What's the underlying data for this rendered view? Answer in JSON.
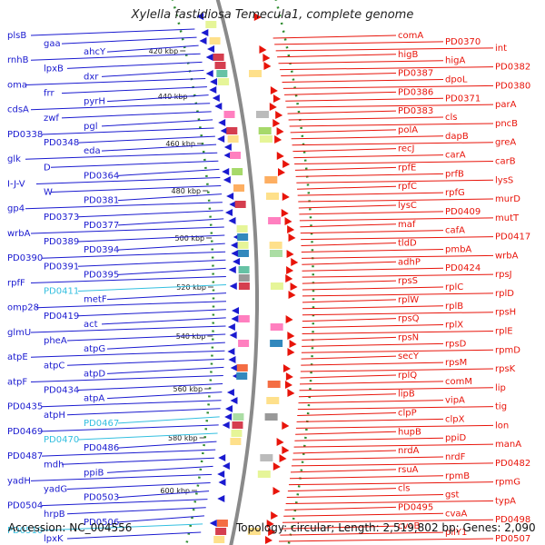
{
  "title": "Xylella fastidiosa Temecula1, complete genome",
  "footer": {
    "accession": "Accession: NC_004556",
    "topology": "Topology: circular; Length: 2,519,802 bp; Genes: 2,090"
  },
  "colors": {
    "forward": "#e8140a",
    "reverse": "#1a1ad0",
    "highlight": "#33bfe0",
    "ruler_dot": "#2e8b2e",
    "backbone": "#8a8a8a"
  },
  "scale_ticks": [
    "420 kbp",
    "440 kbp",
    "460 kbp",
    "480 kbp",
    "500 kbp",
    "520 kbp",
    "540 kbp",
    "560 kbp",
    "580 kbp",
    "600 kbp"
  ],
  "reverse_labels": [
    "plsB",
    "gaa",
    "ahcY",
    "rnhB",
    "lpxB",
    "dxr",
    "oma",
    "frr",
    "pyrH",
    "cdsA",
    "zwf",
    "pgl",
    "PD0338",
    "PD0348",
    "eda",
    "glk",
    "D",
    "PD0364",
    "I-J-V",
    "W",
    "PD0381",
    "gp4",
    "PD0373",
    "PD0377",
    "wrbA",
    "PD0389",
    "PD0394",
    "PD0390",
    "PD0391",
    "PD0395",
    "rpfF",
    "PD0411",
    "metF",
    "omp28",
    "PD0419",
    "act",
    "glmU",
    "pheA",
    "atpG",
    "atpE",
    "atpC",
    "atpD",
    "atpF",
    "PD0434",
    "atpA",
    "PD0435",
    "atpH",
    "PD0467",
    "PD0469",
    "PD0470",
    "PD0486",
    "PD0487",
    "mdh",
    "ppiB",
    "yadH",
    "yadG",
    "PD0503",
    "PD0504",
    "hrpB",
    "PD0506",
    "PD0510",
    "lpxK"
  ],
  "forward_labels": [
    "comA",
    "PD0370",
    "int",
    "higB",
    "higA",
    "PD0382",
    "PD0387",
    "dpoL",
    "PD0380",
    "PD0386",
    "PD0371",
    "parA",
    "PD0383",
    "cls",
    "pncB",
    "polA",
    "dapB",
    "greA",
    "recJ",
    "carA",
    "carB",
    "rpfE",
    "prfB",
    "lysS",
    "rpfC",
    "rpfG",
    "murD",
    "lysC",
    "PD0409",
    "mutT",
    "maf",
    "cafA",
    "PD0417",
    "tldD",
    "pmbA",
    "wrbA",
    "adhP",
    "PD0424",
    "rpsJ",
    "rpsS",
    "rplC",
    "rplD",
    "rplW",
    "rplB",
    "rpsH",
    "rpsQ",
    "rplX",
    "rplE",
    "rpsN",
    "rpsD",
    "rpmD",
    "secY",
    "rpsM",
    "rpsK",
    "rplQ",
    "comM",
    "lip",
    "lipB",
    "vipA",
    "tig",
    "clpP",
    "clpX",
    "lon",
    "hupB",
    "ppiD",
    "manA",
    "nrdA",
    "nrdF",
    "PD0482",
    "rsuA",
    "rpmB",
    "rpmG",
    "cls",
    "gst",
    "typA",
    "PD0495",
    "cvaA",
    "PD0498",
    "cvaB",
    "pilY1",
    "PD0507"
  ]
}
